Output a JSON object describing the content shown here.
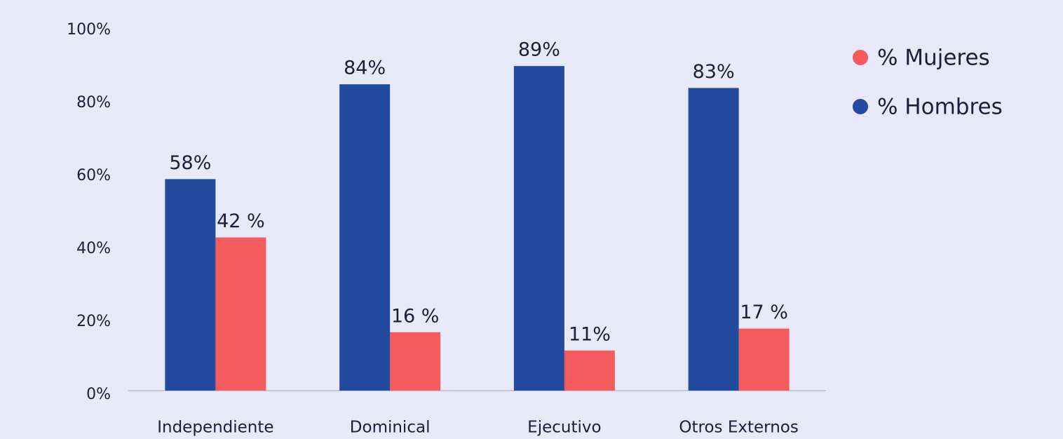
{
  "chart_data": {
    "type": "bar",
    "categories": [
      "Independiente",
      "Dominical",
      "Ejecutivo",
      "Otros Externos"
    ],
    "series": [
      {
        "name": "% Mujeres",
        "color": "#f35b5d",
        "values": [
          42,
          16,
          11,
          17
        ],
        "value_labels": [
          "42 %",
          "16 %",
          "11%",
          "17 %"
        ]
      },
      {
        "name": "% Hombres",
        "color": "#224a9f",
        "values": [
          58,
          84,
          89,
          83
        ],
        "value_labels": [
          "58%",
          "84%",
          "89%",
          "83%"
        ]
      }
    ],
    "ylim": [
      0,
      100
    ],
    "yticks": [
      {
        "value": 0,
        "label": "0%"
      },
      {
        "value": 20,
        "label": "20%"
      },
      {
        "value": 40,
        "label": "40%"
      },
      {
        "value": 60,
        "label": "60%"
      },
      {
        "value": 80,
        "label": "80%"
      },
      {
        "value": 100,
        "label": "100%"
      }
    ],
    "grid": false,
    "legend": "right"
  }
}
